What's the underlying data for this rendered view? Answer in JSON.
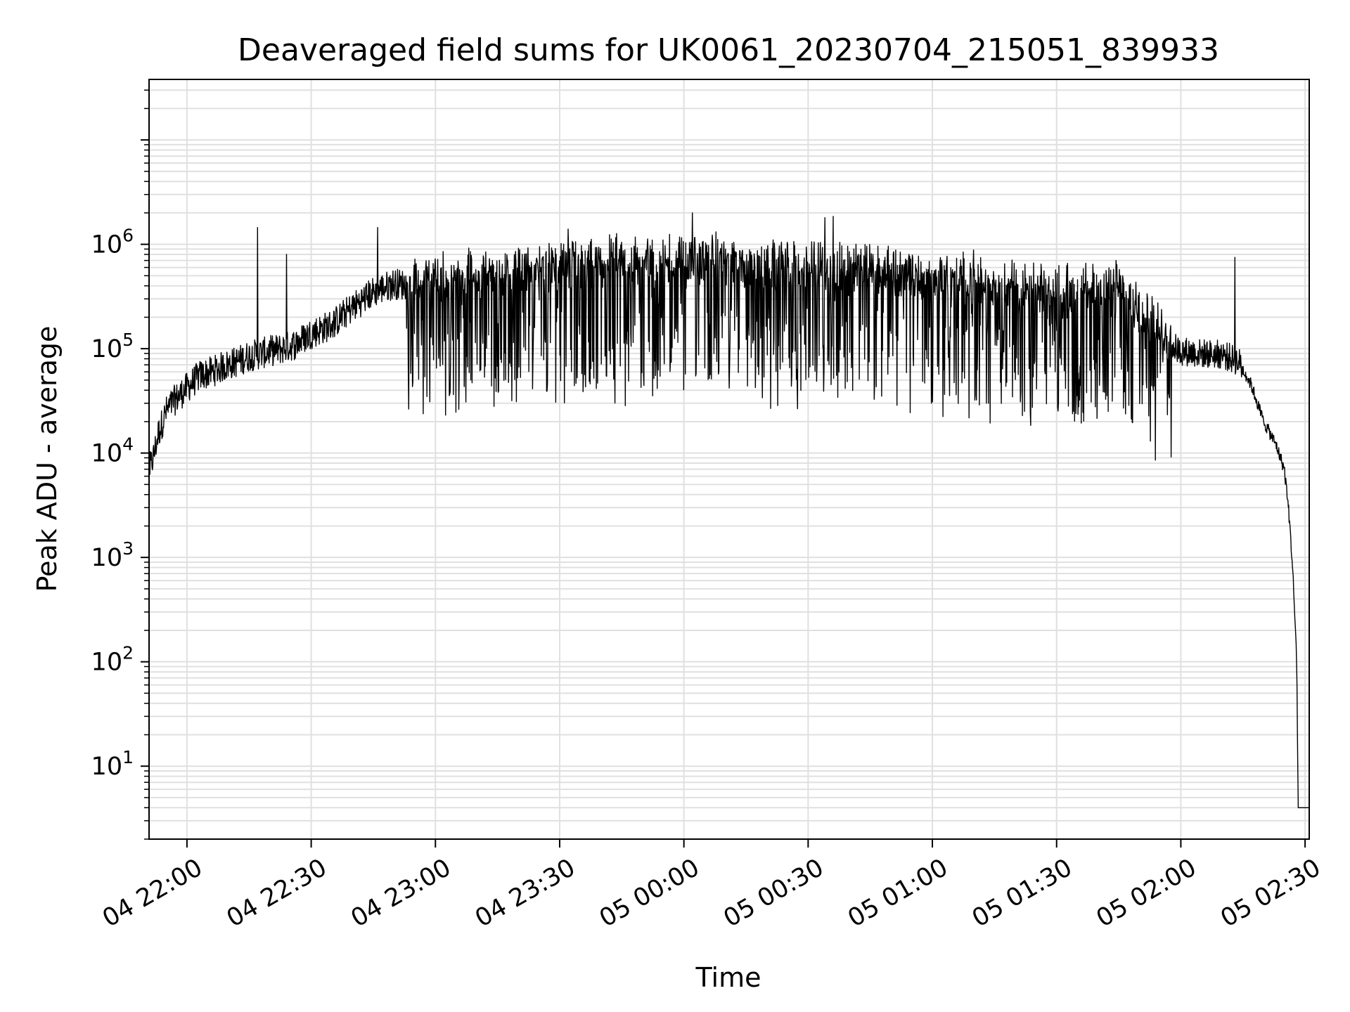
{
  "chart_data": {
    "type": "line",
    "title": "Deaveraged field sums for UK0061_20230704_215051_839933",
    "xlabel": "Time",
    "ylabel": "Peak ADU - average",
    "yscale": "log",
    "grid": true,
    "line_color": "#000000",
    "grid_color": "#e0e0e0",
    "xlim": [
      "04 21:50:51",
      "05 02:31:00"
    ],
    "ylim": [
      2,
      38000000
    ],
    "x_ticks": [
      {
        "time": "04 22:00",
        "label": "04 22:00"
      },
      {
        "time": "04 22:30",
        "label": "04 22:30"
      },
      {
        "time": "04 23:00",
        "label": "04 23:00"
      },
      {
        "time": "04 23:30",
        "label": "04 23:30"
      },
      {
        "time": "05 00:00",
        "label": "05 00:00"
      },
      {
        "time": "05 00:30",
        "label": "05 00:30"
      },
      {
        "time": "05 01:00",
        "label": "05 01:00"
      },
      {
        "time": "05 01:30",
        "label": "05 01:30"
      },
      {
        "time": "05 02:00",
        "label": "05 02:00"
      },
      {
        "time": "05 02:30",
        "label": "05 02:30"
      }
    ],
    "y_ticks": [
      {
        "value": 10,
        "base": "10",
        "exp": "1"
      },
      {
        "value": 100,
        "base": "10",
        "exp": "2"
      },
      {
        "value": 1000,
        "base": "10",
        "exp": "3"
      },
      {
        "value": 10000,
        "base": "10",
        "exp": "4"
      },
      {
        "value": 100000,
        "base": "10",
        "exp": "5"
      },
      {
        "value": 1000000,
        "base": "10",
        "exp": "6"
      }
    ],
    "series": [
      {
        "points": [
          [
            "04 21:51",
            7000
          ],
          [
            "04 21:52",
            9500
          ],
          [
            "04 21:53",
            15000
          ],
          [
            "04 21:55",
            25000
          ],
          [
            "04 21:57",
            32000
          ],
          [
            "04 22:00",
            42000
          ],
          [
            "04 22:03",
            55000
          ],
          [
            "04 22:06",
            60000
          ],
          [
            "04 22:09",
            68000
          ],
          [
            "04 22:12",
            75000
          ],
          [
            "04 22:15",
            85000
          ],
          [
            "04 22:18",
            90000
          ],
          [
            "04 22:20",
            95000
          ],
          [
            "04 22:23",
            100000
          ],
          [
            "04 22:26",
            110000
          ],
          [
            "04 22:30",
            140000
          ],
          [
            "04 22:35",
            170000
          ],
          [
            "04 22:40",
            250000
          ],
          [
            "04 22:45",
            350000
          ],
          [
            "04 22:50",
            420000
          ],
          [
            "04 22:55",
            400000
          ],
          [
            "04 23:00",
            380000
          ],
          [
            "04 23:10",
            420000
          ],
          [
            "04 23:20",
            480000
          ],
          [
            "04 23:30",
            520000
          ],
          [
            "04 23:40",
            560000
          ],
          [
            "04 23:50",
            580000
          ],
          [
            "05 00:00",
            600000
          ],
          [
            "05 00:10",
            590000
          ],
          [
            "05 00:20",
            560000
          ],
          [
            "05 00:30",
            540000
          ],
          [
            "05 00:40",
            500000
          ],
          [
            "05 00:50",
            460000
          ],
          [
            "05 01:00",
            420000
          ],
          [
            "05 01:10",
            380000
          ],
          [
            "05 01:20",
            330000
          ],
          [
            "05 01:30",
            280000
          ],
          [
            "05 01:40",
            330000
          ],
          [
            "05 01:45",
            340000
          ],
          [
            "05 01:50",
            220000
          ],
          [
            "05 01:55",
            120000
          ],
          [
            "05 02:00",
            95000
          ],
          [
            "05 02:05",
            90000
          ],
          [
            "05 02:10",
            88000
          ],
          [
            "05 02:14",
            75000
          ],
          [
            "05 02:17",
            45000
          ],
          [
            "05 02:20",
            20000
          ],
          [
            "05 02:23",
            12000
          ],
          [
            "05 02:25",
            7000
          ],
          [
            "05 02:26",
            3000
          ],
          [
            "05 02:27",
            800
          ],
          [
            "05 02:28",
            100
          ],
          [
            "05 02:28:20",
            4
          ],
          [
            "05 02:31",
            4
          ]
        ],
        "peaks": [
          [
            "04 22:17",
            1450000
          ],
          [
            "04 22:24",
            800000
          ],
          [
            "04 22:46",
            1450000
          ],
          [
            "04 23:32",
            1400000
          ],
          [
            "05 00:02",
            2000000
          ],
          [
            "05 00:34",
            1800000
          ],
          [
            "05 00:36",
            1850000
          ],
          [
            "05 02:13",
            750000
          ]
        ]
      }
    ]
  }
}
